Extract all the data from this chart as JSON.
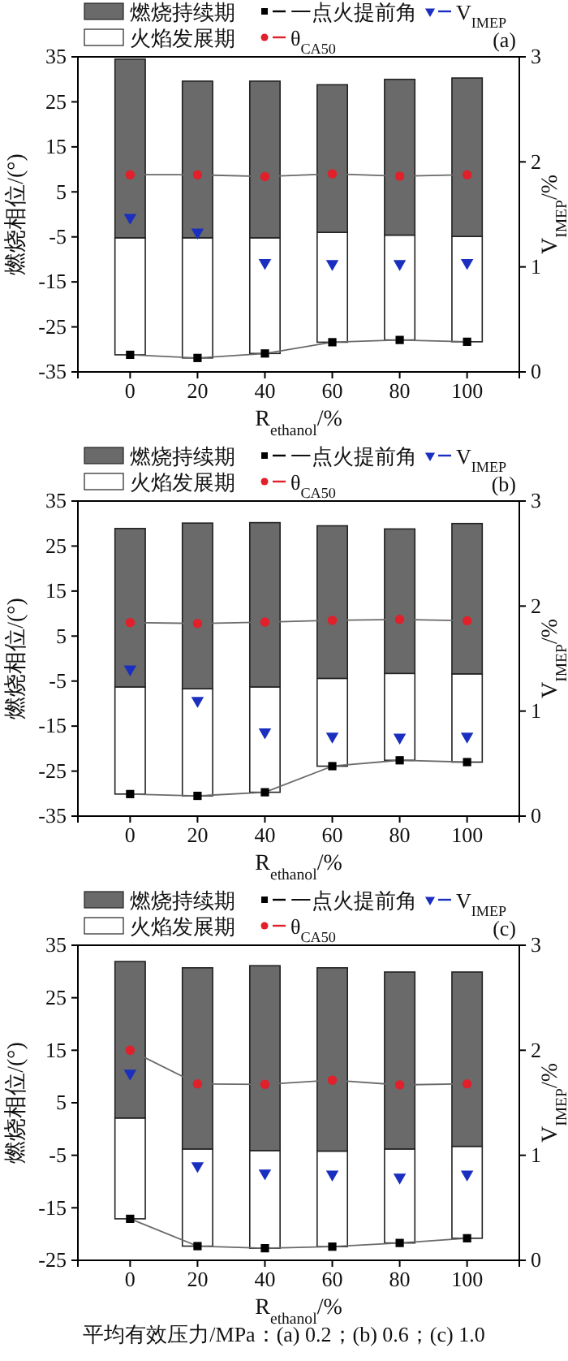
{
  "chart_data": [
    {
      "type": "bar",
      "xlabel": "R$_{ethanol}$/%",
      "ylabel": "燃烧相位/(°)",
      "y2label": "V$_{IMEP}$/%",
      "categories": [
        "0",
        "20",
        "40",
        "60",
        "80",
        "100"
      ],
      "ylim": [
        -35,
        35
      ],
      "yticks": [
        -35,
        -25,
        -15,
        -5,
        5,
        15,
        25,
        35
      ],
      "y2lim": [
        0,
        3
      ],
      "y2ticks": [
        0,
        1,
        2,
        3
      ],
      "legend": "top",
      "annotations": [
        "(a)"
      ],
      "series": [
        {
          "name": "火焰发展期",
          "color": "#ffffff",
          "base": [
            -31.2,
            -31.9,
            -30.9,
            -28.4,
            -27.9,
            -28.3
          ],
          "values": [
            26.0,
            26.7,
            25.7,
            24.4,
            23.3,
            23.4
          ]
        },
        {
          "name": "燃烧持续期",
          "color": "#6a6a6a",
          "base": [
            -5.2,
            -5.2,
            -5.2,
            -4.0,
            -4.6,
            -4.9
          ],
          "values": [
            39.7,
            34.8,
            34.8,
            32.8,
            34.6,
            35.2
          ]
        },
        {
          "name": "一点火提前角",
          "type": "line",
          "marker": "square",
          "color": "#000000",
          "values": [
            -31.2,
            -31.9,
            -30.9,
            -28.4,
            -27.9,
            -28.3
          ]
        },
        {
          "name": "θ$_{CA50}$",
          "type": "line",
          "marker": "circle",
          "color": "#e0202a",
          "values": [
            8.8,
            8.8,
            8.4,
            9.0,
            8.5,
            8.8
          ]
        },
        {
          "name": "V$_{IMEP}$",
          "type": "scatter",
          "marker": "triangle",
          "axis": "y2",
          "color": "#1a2fbf",
          "values": [
            1.47,
            1.33,
            1.04,
            1.03,
            1.03,
            1.04
          ]
        }
      ]
    },
    {
      "type": "bar",
      "xlabel": "R$_{ethanol}$/%",
      "ylabel": "燃烧相位/(°)",
      "y2label": "V$_{IMEP}$/%",
      "categories": [
        "0",
        "20",
        "40",
        "60",
        "80",
        "100"
      ],
      "ylim": [
        -35,
        35
      ],
      "yticks": [
        -35,
        -25,
        -15,
        -5,
        5,
        15,
        25,
        35
      ],
      "y2lim": [
        0,
        3
      ],
      "y2ticks": [
        0,
        1,
        2,
        3
      ],
      "legend": "top",
      "annotations": [
        "(b)"
      ],
      "series": [
        {
          "name": "火焰发展期",
          "color": "#ffffff",
          "base": [
            -30.1,
            -30.5,
            -29.7,
            -23.9,
            -22.6,
            -23.0
          ],
          "values": [
            23.8,
            23.8,
            23.4,
            19.5,
            19.3,
            19.6
          ]
        },
        {
          "name": "燃烧持续期",
          "color": "#6a6a6a",
          "base": [
            -6.3,
            -6.7,
            -6.3,
            -4.4,
            -3.3,
            -3.4
          ],
          "values": [
            35.2,
            36.8,
            36.5,
            33.9,
            32.1,
            33.4
          ]
        },
        {
          "name": "一点火提前角",
          "type": "line",
          "marker": "square",
          "color": "#000000",
          "values": [
            -30.1,
            -30.5,
            -29.7,
            -23.9,
            -22.6,
            -23.0
          ]
        },
        {
          "name": "θ$_{CA50}$",
          "type": "line",
          "marker": "circle",
          "color": "#e0202a",
          "values": [
            8.0,
            7.8,
            8.1,
            8.5,
            8.7,
            8.4
          ]
        },
        {
          "name": "V$_{IMEP}$",
          "type": "scatter",
          "marker": "triangle",
          "axis": "y2",
          "color": "#1a2fbf",
          "values": [
            1.4,
            1.1,
            0.8,
            0.76,
            0.75,
            0.76
          ]
        }
      ]
    },
    {
      "type": "bar",
      "xlabel": "R$_{ethanol}$/%",
      "ylabel": "燃烧相位/(°)",
      "y2label": "V$_{IMEP}$/%",
      "categories": [
        "0",
        "20",
        "40",
        "60",
        "80",
        "100"
      ],
      "ylim": [
        -25,
        35
      ],
      "yticks": [
        -25,
        -15,
        -5,
        5,
        15,
        25,
        35
      ],
      "y2lim": [
        0,
        3
      ],
      "y2ticks": [
        0,
        1,
        2,
        3
      ],
      "legend": "top",
      "annotations": [
        "(c)",
        "平均有效压力/MPa：(a) 0.2；(b) 0.6；(c) 1.0"
      ],
      "series": [
        {
          "name": "火焰发展期",
          "color": "#ffffff",
          "base": [
            -17.1,
            -22.3,
            -22.7,
            -22.4,
            -21.7,
            -20.8
          ],
          "values": [
            19.2,
            18.5,
            18.6,
            18.2,
            17.9,
            17.5
          ]
        },
        {
          "name": "燃烧持续期",
          "color": "#6a6a6a",
          "base": [
            2.1,
            -3.8,
            -4.1,
            -4.2,
            -3.8,
            -3.3
          ],
          "values": [
            29.8,
            34.5,
            35.2,
            34.9,
            33.7,
            33.2
          ]
        },
        {
          "name": "一点火提前角",
          "type": "line",
          "marker": "square",
          "color": "#000000",
          "values": [
            -17.1,
            -22.3,
            -22.7,
            -22.4,
            -21.7,
            -20.8
          ]
        },
        {
          "name": "θ$_{CA50}$",
          "type": "line",
          "marker": "circle",
          "color": "#e0202a",
          "values": [
            15.0,
            8.6,
            8.5,
            9.3,
            8.4,
            8.6
          ]
        },
        {
          "name": "V$_{IMEP}$",
          "type": "scatter",
          "marker": "triangle",
          "axis": "y2",
          "color": "#1a2fbf",
          "values": [
            1.78,
            0.9,
            0.83,
            0.82,
            0.79,
            0.82
          ]
        }
      ]
    }
  ]
}
